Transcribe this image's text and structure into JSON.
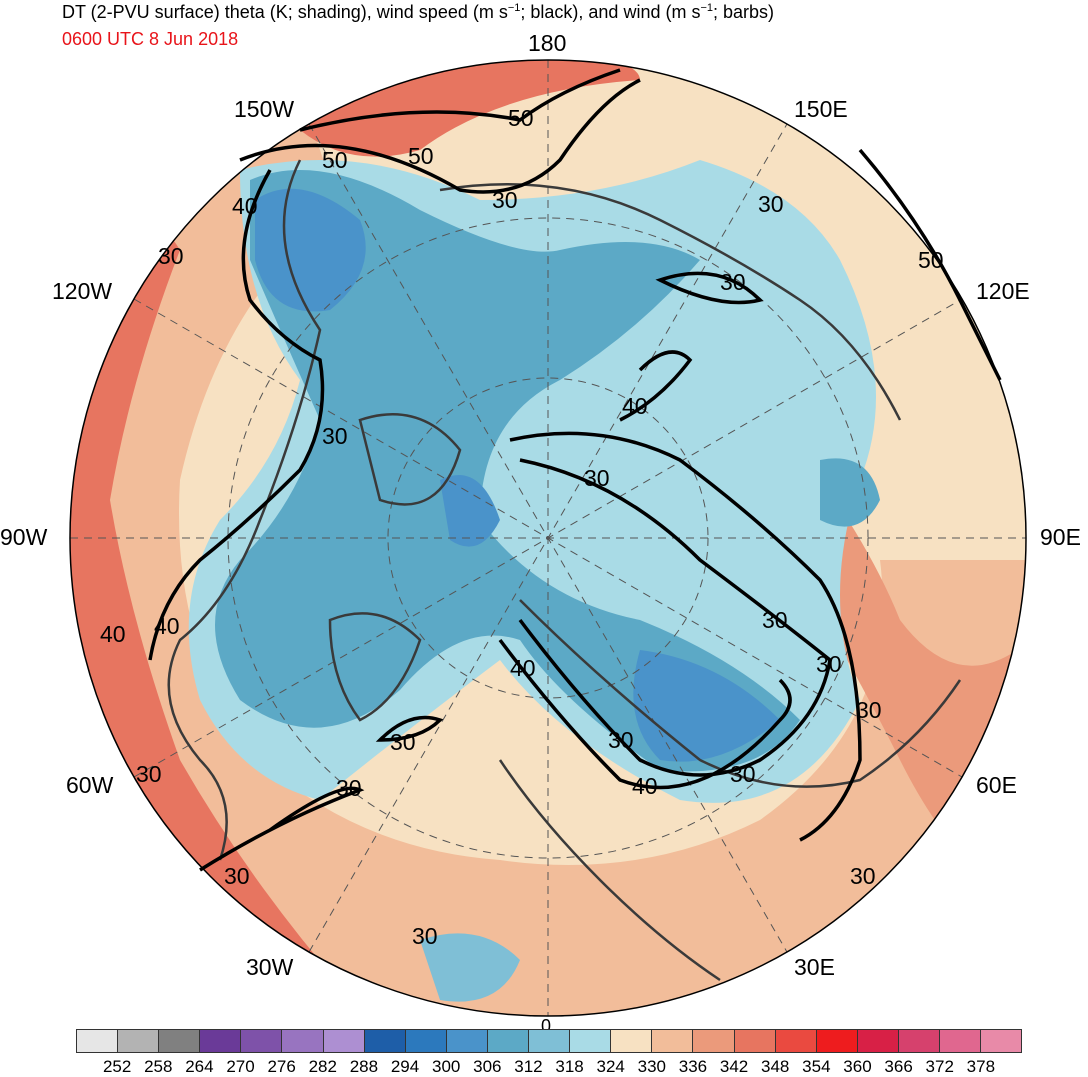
{
  "header": {
    "title_prefix": "DT (2-PVU surface) theta (K; shading), wind speed (m s",
    "title_exp1": "−1",
    "title_mid": "; black), and wind (m s",
    "title_exp2": "−1",
    "title_suffix": "; barbs)",
    "valid_time": "0600 UTC 8 Jun 2018"
  },
  "longitude_labels": {
    "top": "180",
    "upper_left": "150W",
    "upper_right": "150E",
    "left_upper": "120W",
    "right_upper": "120E",
    "left": "90W",
    "right": "90E",
    "left_lower": "60W",
    "right_lower": "60E",
    "lower_left": "30W",
    "lower_right": "30E",
    "bottom": "0"
  },
  "contour_labels": [
    "50",
    "50",
    "50",
    "40",
    "30",
    "30",
    "30",
    "50",
    "30",
    "40",
    "30",
    "30",
    "40",
    "40",
    "30",
    "30",
    "40",
    "30",
    "30",
    "30",
    "30",
    "30",
    "40",
    "30",
    "30",
    "30",
    "30"
  ],
  "colorbar": {
    "colors": [
      "#e6e6e6",
      "#b3b3b3",
      "#808080",
      "#6a3a98",
      "#7e52a9",
      "#9874c0",
      "#ad8fd2",
      "#1e5ea8",
      "#2c79bd",
      "#4a93ca",
      "#5ca9c6",
      "#7fbfd6",
      "#a9dbe6",
      "#f7e1c2",
      "#f2bd9a",
      "#eb9a7b",
      "#e77560",
      "#ea4a40",
      "#ee1c1e",
      "#d82046",
      "#d6416d",
      "#e0678f",
      "#e88aa8"
    ],
    "ticks": [
      "252",
      "258",
      "264",
      "270",
      "276",
      "282",
      "288",
      "294",
      "300",
      "306",
      "312",
      "318",
      "324",
      "330",
      "336",
      "342",
      "348",
      "354",
      "360",
      "366",
      "372",
      "378"
    ]
  },
  "map": {
    "ocean_color": "#a9dbe6",
    "cold_color": "#5ca9c6",
    "coldest_color": "#2c79bd",
    "warm_color": "#f2bd9a",
    "hot_color": "#e77560"
  }
}
